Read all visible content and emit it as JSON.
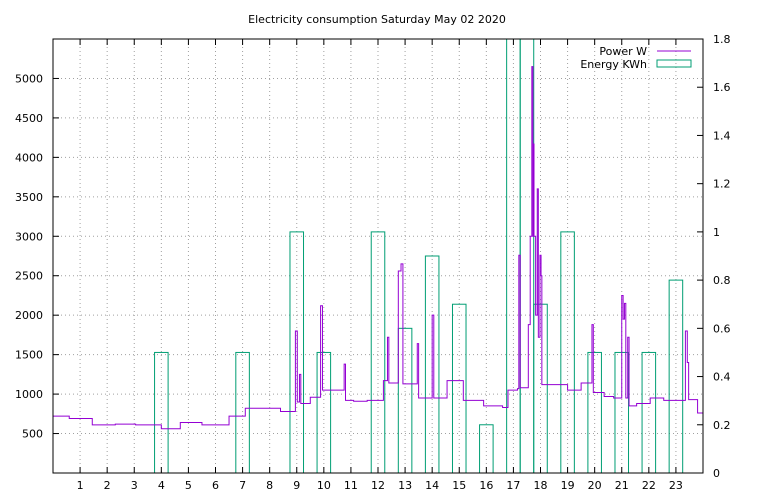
{
  "chart_data": {
    "type": "line",
    "title": "Electricity consumption Saturday May 02 2020",
    "xlabel": "",
    "ylabel": "",
    "xlim": [
      0,
      24
    ],
    "ylim": [
      0,
      5500
    ],
    "y2lim": [
      0,
      1.8
    ],
    "grid": true,
    "legend_position": "top-right",
    "x_ticks": [
      "1",
      "2",
      "3",
      "4",
      "5",
      "6",
      "7",
      "8",
      "9",
      "10",
      "11",
      "12",
      "13",
      "14",
      "15",
      "16",
      "17",
      "18",
      "19",
      "20",
      "21",
      "22",
      "23"
    ],
    "y_ticks": [
      "500",
      "1000",
      "1500",
      "2000",
      "2500",
      "3000",
      "3500",
      "4000",
      "4500",
      "5000"
    ],
    "y2_ticks": [
      "0",
      "0.2",
      "0.4",
      "0.6",
      "0.8",
      "1",
      "1.2",
      "1.4",
      "1.6",
      "1.8"
    ],
    "colors": {
      "power": "#9400d3",
      "energy": "#009e73",
      "grid": "#a0a0a0"
    },
    "series": [
      {
        "name": "Power W",
        "style": "steps",
        "axis": "y1",
        "points": [
          [
            0.0,
            720
          ],
          [
            0.6,
            690
          ],
          [
            1.45,
            610
          ],
          [
            2.3,
            620
          ],
          [
            3.05,
            610
          ],
          [
            4.0,
            560
          ],
          [
            4.7,
            640
          ],
          [
            5.5,
            610
          ],
          [
            6.5,
            720
          ],
          [
            7.1,
            820
          ],
          [
            8.4,
            780
          ],
          [
            8.95,
            1800
          ],
          [
            9.02,
            900
          ],
          [
            9.1,
            1250
          ],
          [
            9.15,
            880
          ],
          [
            9.5,
            960
          ],
          [
            9.88,
            2120
          ],
          [
            9.95,
            1050
          ],
          [
            10.75,
            1380
          ],
          [
            10.8,
            920
          ],
          [
            11.1,
            910
          ],
          [
            11.6,
            920
          ],
          [
            12.2,
            1170
          ],
          [
            12.35,
            1720
          ],
          [
            12.4,
            1140
          ],
          [
            12.75,
            2560
          ],
          [
            12.85,
            2650
          ],
          [
            12.92,
            1130
          ],
          [
            13.45,
            1640
          ],
          [
            13.5,
            950
          ],
          [
            14.0,
            2000
          ],
          [
            14.06,
            950
          ],
          [
            14.55,
            1170
          ],
          [
            15.15,
            920
          ],
          [
            15.9,
            850
          ],
          [
            16.6,
            830
          ],
          [
            16.8,
            1050
          ],
          [
            17.15,
            1070
          ],
          [
            17.2,
            2760
          ],
          [
            17.25,
            1080
          ],
          [
            17.55,
            1880
          ],
          [
            17.62,
            3000
          ],
          [
            17.68,
            5150
          ],
          [
            17.72,
            3000
          ],
          [
            17.74,
            4170
          ],
          [
            17.76,
            3000
          ],
          [
            17.82,
            2000
          ],
          [
            17.88,
            3600
          ],
          [
            17.92,
            1720
          ],
          [
            17.98,
            2760
          ],
          [
            18.02,
            2500
          ],
          [
            18.05,
            1120
          ],
          [
            19.0,
            1050
          ],
          [
            19.5,
            1140
          ],
          [
            19.9,
            1880
          ],
          [
            19.95,
            1020
          ],
          [
            20.35,
            970
          ],
          [
            20.7,
            950
          ],
          [
            21.0,
            2250
          ],
          [
            21.05,
            1950
          ],
          [
            21.1,
            2150
          ],
          [
            21.15,
            950
          ],
          [
            21.22,
            1720
          ],
          [
            21.27,
            850
          ],
          [
            21.55,
            880
          ],
          [
            22.05,
            950
          ],
          [
            22.55,
            920
          ],
          [
            23.35,
            1800
          ],
          [
            23.42,
            1400
          ],
          [
            23.47,
            930
          ],
          [
            23.8,
            760
          ],
          [
            24.0,
            940
          ]
        ]
      },
      {
        "name": "Energy KWh",
        "style": "boxes",
        "axis": "y2",
        "boxes": [
          [
            4,
            0.5
          ],
          [
            7,
            0.5
          ],
          [
            9,
            1.0
          ],
          [
            10,
            0.5
          ],
          [
            12,
            1.0
          ],
          [
            13,
            0.6
          ],
          [
            14,
            0.9
          ],
          [
            15,
            0.7
          ],
          [
            16,
            0.2
          ],
          [
            17,
            1.8
          ],
          [
            17.5,
            1.8
          ],
          [
            18,
            0.7
          ],
          [
            19,
            1.0
          ],
          [
            20,
            0.5
          ],
          [
            21,
            0.5
          ],
          [
            22,
            0.5
          ],
          [
            23,
            0.8
          ]
        ]
      }
    ]
  }
}
